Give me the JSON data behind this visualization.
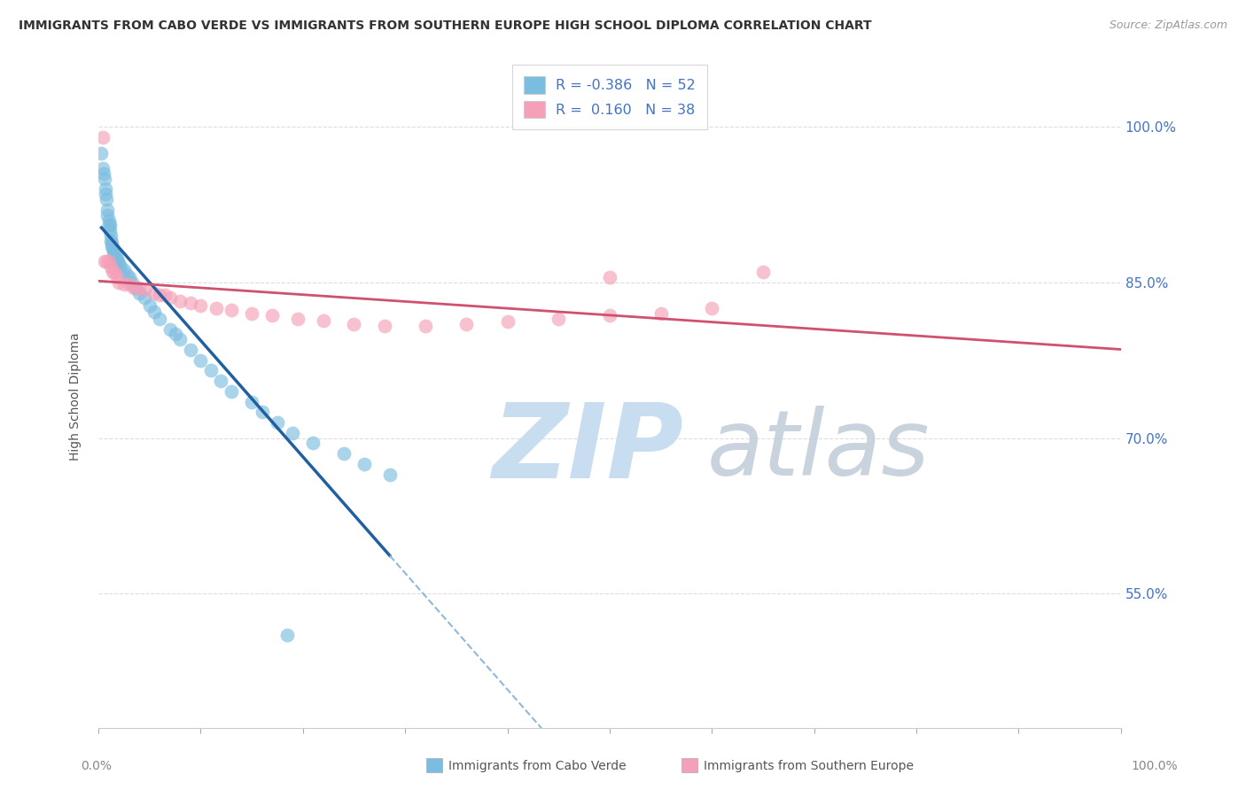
{
  "title": "IMMIGRANTS FROM CABO VERDE VS IMMIGRANTS FROM SOUTHERN EUROPE HIGH SCHOOL DIPLOMA CORRELATION CHART",
  "source": "Source: ZipAtlas.com",
  "ylabel": "High School Diploma",
  "cabo_verde_R": -0.386,
  "cabo_verde_N": 52,
  "southern_europe_R": 0.16,
  "southern_europe_N": 38,
  "cabo_verde_x": [
    0.003,
    0.004,
    0.005,
    0.006,
    0.007,
    0.007,
    0.008,
    0.009,
    0.009,
    0.01,
    0.01,
    0.011,
    0.011,
    0.012,
    0.012,
    0.013,
    0.013,
    0.014,
    0.015,
    0.016,
    0.017,
    0.018,
    0.019,
    0.02,
    0.022,
    0.025,
    0.028,
    0.03,
    0.033,
    0.036,
    0.04,
    0.045,
    0.05,
    0.055,
    0.06,
    0.07,
    0.075,
    0.08,
    0.09,
    0.1,
    0.11,
    0.12,
    0.13,
    0.15,
    0.16,
    0.175,
    0.19,
    0.21,
    0.24,
    0.26,
    0.285,
    0.185
  ],
  "cabo_verde_y": [
    0.975,
    0.96,
    0.955,
    0.95,
    0.94,
    0.935,
    0.93,
    0.92,
    0.915,
    0.91,
    0.905,
    0.905,
    0.9,
    0.895,
    0.89,
    0.888,
    0.885,
    0.883,
    0.88,
    0.878,
    0.875,
    0.872,
    0.87,
    0.868,
    0.865,
    0.862,
    0.858,
    0.855,
    0.85,
    0.845,
    0.84,
    0.835,
    0.828,
    0.822,
    0.815,
    0.805,
    0.8,
    0.795,
    0.785,
    0.775,
    0.765,
    0.755,
    0.745,
    0.735,
    0.725,
    0.715,
    0.705,
    0.695,
    0.685,
    0.675,
    0.665,
    0.51
  ],
  "southern_europe_x": [
    0.004,
    0.006,
    0.008,
    0.01,
    0.012,
    0.014,
    0.016,
    0.018,
    0.02,
    0.025,
    0.03,
    0.035,
    0.04,
    0.045,
    0.055,
    0.06,
    0.065,
    0.07,
    0.08,
    0.09,
    0.1,
    0.115,
    0.13,
    0.15,
    0.17,
    0.195,
    0.22,
    0.25,
    0.28,
    0.32,
    0.36,
    0.4,
    0.45,
    0.5,
    0.55,
    0.6,
    0.65,
    0.5
  ],
  "southern_europe_y": [
    0.99,
    0.87,
    0.87,
    0.87,
    0.865,
    0.86,
    0.86,
    0.855,
    0.85,
    0.848,
    0.848,
    0.845,
    0.845,
    0.843,
    0.84,
    0.838,
    0.838,
    0.835,
    0.832,
    0.83,
    0.828,
    0.825,
    0.823,
    0.82,
    0.818,
    0.815,
    0.813,
    0.81,
    0.808,
    0.808,
    0.81,
    0.812,
    0.815,
    0.818,
    0.82,
    0.825,
    0.86,
    0.855
  ],
  "cabo_verde_color": "#7bbde0",
  "southern_europe_color": "#f4a0b8",
  "cabo_verde_line_color": "#2060a0",
  "southern_europe_line_color": "#d05070",
  "dashed_line_color": "#90b8d8",
  "watermark_zip_color": "#c8ddf0",
  "watermark_atlas_color": "#c0ccd8",
  "background_color": "#ffffff",
  "grid_color": "#dddddd",
  "y_ticks": [
    0.55,
    0.7,
    0.85,
    1.0
  ],
  "y_tick_labels": [
    "55.0%",
    "70.0%",
    "85.0%",
    "100.0%"
  ],
  "xlim": [
    0.0,
    1.0
  ],
  "ylim": [
    0.42,
    1.06
  ]
}
